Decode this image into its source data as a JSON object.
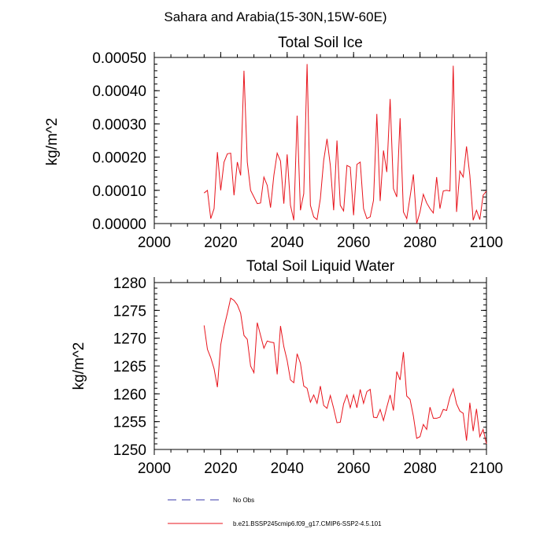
{
  "suptitle": "Sahara and Arabia(15-30N,15W-60E)",
  "colors": {
    "series": "#e8141c",
    "obs": "#3a3aa8",
    "axis": "#000000"
  },
  "chart_data": [
    {
      "type": "line",
      "title": "Total Soil Ice",
      "xlabel": "",
      "ylabel": "kg/m^2",
      "xlim": [
        2000,
        2100
      ],
      "ylim": [
        0,
        0.0005
      ],
      "xticks": [
        2000,
        2020,
        2040,
        2060,
        2080,
        2100
      ],
      "xtick_labels": [
        "2000",
        "2020",
        "2040",
        "2060",
        "2080",
        "2100"
      ],
      "yticks": [
        0,
        0.0001,
        0.0002,
        0.0003,
        0.0004,
        0.0005
      ],
      "ytick_labels": [
        "0.00000",
        "0.00010",
        "0.00020",
        "0.00030",
        "0.00040",
        "0.00050"
      ],
      "x_start": 2015,
      "series": [
        {
          "name": "b.e21.BSSP245cmip6.f09_g17.CMIP6-SSP2-4.5.101",
          "values": [
            9.2e-05,
            0.0001,
            1.5e-05,
            4.5e-05,
            0.000215,
            0.0001,
            0.000185,
            0.00021,
            0.000212,
            8.5e-05,
            0.000185,
            0.000145,
            0.00046,
            0.000185,
            0.0001,
            8e-05,
            6e-05,
            6.2e-05,
            0.00014,
            0.000115,
            4.8e-05,
            0.000145,
            0.000212,
            0.000188,
            6e-05,
            0.000208,
            5.5e-05,
            1e-05,
            0.000325,
            4e-05,
            9e-05,
            0.00048,
            5.5e-05,
            2e-05,
            1.2e-05,
            7.5e-05,
            0.00019,
            0.000255,
            0.000175,
            4e-05,
            0.00025,
            5.5e-05,
            3.8e-05,
            0.000175,
            0.00017,
            2.5e-05,
            0.000178,
            0.000185,
            4.5e-05,
            1.5e-05,
            2e-05,
            7e-05,
            0.00033,
            6.8e-05,
            0.00022,
            0.000155,
            0.000375,
            0.000105,
            8e-05,
            0.000317,
            3.5e-05,
            1.5e-05,
            8e-05,
            0.000148,
            0.0,
            3.5e-05,
            8.8e-05,
            6.2e-05,
            4.5e-05,
            3.2e-05,
            0.00014,
            4.5e-05,
            9.8e-05,
            0.0001,
            9.8e-05,
            0.000475,
            3.5e-05,
            0.000158,
            0.00014,
            0.000232,
            0.000145,
            1e-05,
            4e-05,
            1.2e-05,
            8.5e-05,
            9.8e-05
          ]
        }
      ]
    },
    {
      "type": "line",
      "title": "Total Soil Liquid Water",
      "xlabel": "",
      "ylabel": "kg/m^2",
      "xlim": [
        2000,
        2100
      ],
      "ylim": [
        1250,
        1280
      ],
      "xticks": [
        2000,
        2020,
        2040,
        2060,
        2080,
        2100
      ],
      "xtick_labels": [
        "2000",
        "2020",
        "2040",
        "2060",
        "2080",
        "2100"
      ],
      "yticks": [
        1250,
        1255,
        1260,
        1265,
        1270,
        1275,
        1280
      ],
      "ytick_labels": [
        "1250",
        "1255",
        "1260",
        "1265",
        "1270",
        "1275",
        "1280"
      ],
      "x_start": 2015,
      "series": [
        {
          "name": "b.e21.BSSP245cmip6.f09_g17.CMIP6-SSP2-4.5.101",
          "values": [
            1272.3,
            1268.0,
            1266.5,
            1264.5,
            1261.2,
            1268.8,
            1272.0,
            1274.5,
            1277.2,
            1276.8,
            1276.0,
            1274.5,
            1270.5,
            1269.8,
            1265.0,
            1263.8,
            1272.8,
            1270.5,
            1268.2,
            1269.5,
            1269.3,
            1269.2,
            1263.5,
            1272.2,
            1268.5,
            1266.0,
            1262.5,
            1262.0,
            1267.2,
            1265.5,
            1261.4,
            1261.0,
            1258.5,
            1259.8,
            1258.3,
            1261.4,
            1257.9,
            1257.4,
            1259.7,
            1257.4,
            1254.8,
            1254.9,
            1258.2,
            1259.8,
            1257.5,
            1259.8,
            1257.5,
            1260.8,
            1258.3,
            1260.4,
            1260.8,
            1255.8,
            1255.7,
            1257.2,
            1255.2,
            1257.6,
            1259.8,
            1257.0,
            1264.0,
            1262.5,
            1267.5,
            1259.6,
            1259.0,
            1256.0,
            1252.0,
            1252.3,
            1254.5,
            1253.6,
            1257.6,
            1255.6,
            1255.6,
            1255.8,
            1257.2,
            1257.0,
            1259.4,
            1260.9,
            1258.2,
            1256.9,
            1256.5,
            1251.6,
            1258.4,
            1253.3,
            1257.3,
            1252.3,
            1253.6,
            1251.0
          ]
        }
      ]
    }
  ],
  "legend": [
    {
      "label": "No Obs",
      "style": "dashed",
      "color_key": "obs"
    },
    {
      "label": "b.e21.BSSP245cmip6.f09_g17.CMIP6-SSP2-4.5.101",
      "style": "solid",
      "color_key": "series"
    }
  ]
}
